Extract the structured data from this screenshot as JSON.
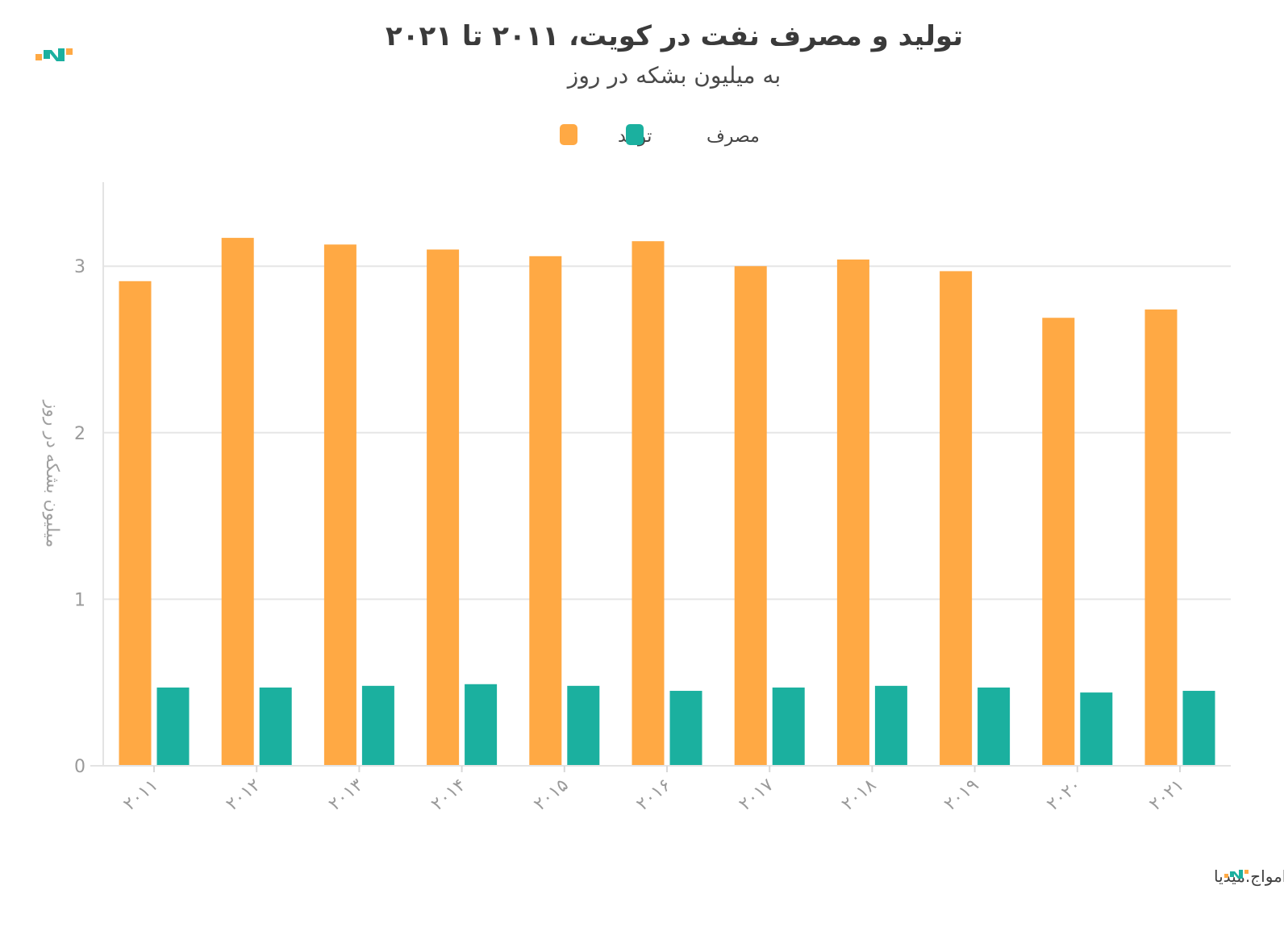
{
  "chart_data": {
    "type": "bar",
    "title": "تولید و مصرف نفت در کویت، ۲۰۱۱ تا ۲۰۲۱",
    "subtitle": "به میلیون بشکه در روز",
    "ylabel": "میلیون بشکه در روز",
    "xlabel": "",
    "categories": [
      "۲۰۱۱",
      "۲۰۱۲",
      "۲۰۱۳",
      "۲۰۱۴",
      "۲۰۱۵",
      "۲۰۱۶",
      "۲۰۱۷",
      "۲۰۱۸",
      "۲۰۱۹",
      "۲۰۲۰",
      "۲۰۲۱"
    ],
    "series": [
      {
        "name": "تولید",
        "color": "#FFA944",
        "values": [
          2.91,
          3.17,
          3.13,
          3.1,
          3.06,
          3.15,
          3.0,
          3.04,
          2.97,
          2.69,
          2.74
        ]
      },
      {
        "name": "مصرف",
        "color": "#1BB09F",
        "values": [
          0.47,
          0.47,
          0.48,
          0.49,
          0.48,
          0.45,
          0.47,
          0.48,
          0.47,
          0.44,
          0.45
        ]
      }
    ],
    "yticks": [
      "0",
      "1",
      "2",
      "3"
    ],
    "ylim": [
      0,
      3.5
    ],
    "grid": true,
    "legend_position": "top-center"
  },
  "footer": {
    "source": "منبع: بریتیش پترولیوم • تولیدشده توسط امواج.میدیا"
  },
  "logo": {
    "colors": [
      "#FFA944",
      "#1BB09F"
    ]
  }
}
